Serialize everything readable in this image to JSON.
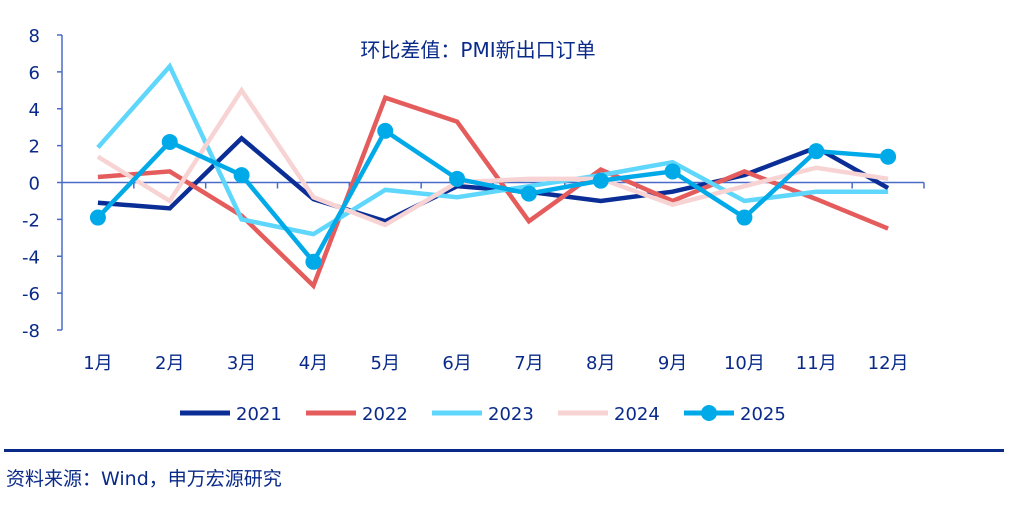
{
  "chart_data": {
    "type": "line",
    "title": "环比差值：PMI新出口订单",
    "categories": [
      "1月",
      "2月",
      "3月",
      "4月",
      "5月",
      "6月",
      "7月",
      "8月",
      "9月",
      "10月",
      "11月",
      "12月"
    ],
    "ylim": [
      -8,
      8
    ],
    "yticks": [
      8,
      6,
      4,
      2,
      0,
      -2,
      -4,
      -6,
      -8
    ],
    "grid": false,
    "legend": "bottom",
    "series": [
      {
        "name": "2021",
        "color": "#0a2e96",
        "markers": false,
        "values": [
          -1.1,
          -1.4,
          2.4,
          -0.9,
          -2.1,
          -0.2,
          -0.5,
          -1.0,
          -0.5,
          0.4,
          1.9,
          -0.3
        ]
      },
      {
        "name": "2022",
        "color": "#e45c5c",
        "markers": false,
        "values": [
          0.3,
          0.6,
          -1.8,
          -5.6,
          4.6,
          3.3,
          -2.1,
          0.7,
          -1.0,
          0.6,
          -0.9,
          -2.5
        ]
      },
      {
        "name": "2023",
        "color": "#5fd6fb",
        "markers": false,
        "values": [
          1.9,
          6.3,
          -2.0,
          -2.8,
          -0.4,
          -0.8,
          -0.2,
          0.4,
          1.1,
          -1.0,
          -0.5,
          -0.5
        ]
      },
      {
        "name": "2024",
        "color": "#f8d3d3",
        "markers": false,
        "values": [
          1.4,
          -1.0,
          5.0,
          -0.8,
          -2.3,
          0.0,
          0.2,
          0.2,
          -1.2,
          -0.2,
          0.8,
          0.2
        ]
      },
      {
        "name": "2025",
        "color": "#00aae8",
        "markers": true,
        "values": [
          -1.9,
          2.2,
          0.4,
          -4.3,
          2.8,
          0.2,
          -0.6,
          0.1,
          0.6,
          -1.9,
          1.7,
          1.4
        ]
      }
    ],
    "axis_color": "#4a6cc8",
    "text_color": "#0a2a8a"
  },
  "source": "资料来源：Wind，申万宏源研究"
}
